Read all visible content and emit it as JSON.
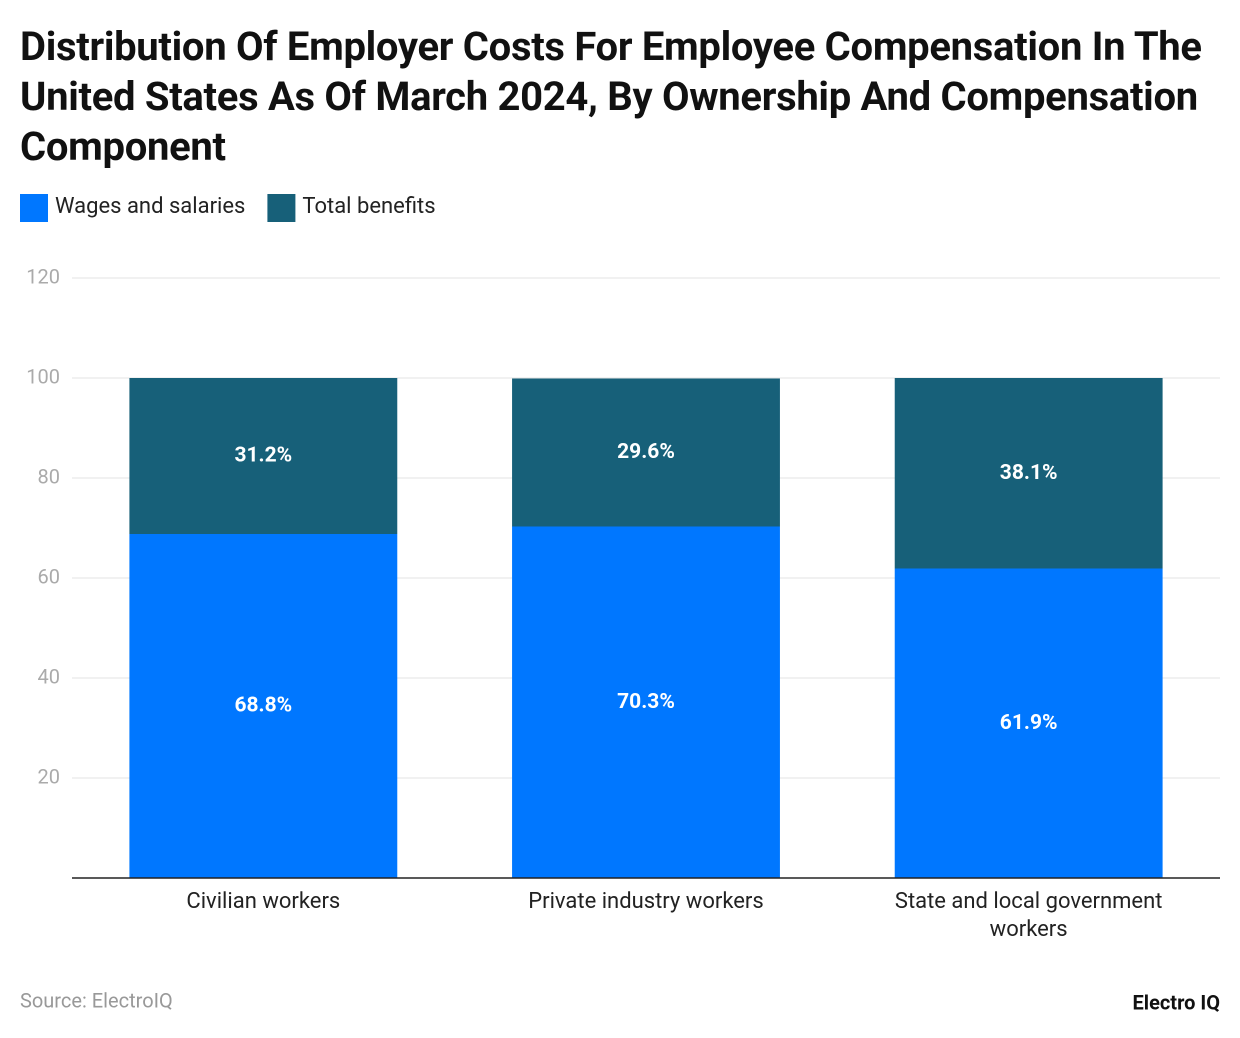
{
  "chart_data": {
    "type": "stacked_bar",
    "title": "Distribution Of Employer Costs For Employee Compensation In The United States As Of March 2024, By Ownership And Compensation Component",
    "categories": [
      "Civilian workers",
      "Private industry workers",
      "State and local government workers"
    ],
    "series": [
      {
        "name": "Wages and salaries",
        "color": "#0077ff",
        "values": [
          68.8,
          70.3,
          61.9
        ],
        "value_labels": [
          "68.8%",
          "70.3%",
          "61.9%"
        ]
      },
      {
        "name": "Total benefits",
        "color": "#176079",
        "values": [
          31.2,
          29.6,
          38.1
        ],
        "value_labels": [
          "31.2%",
          "29.6%",
          "38.1%"
        ]
      }
    ],
    "ylim": [
      0,
      120
    ],
    "yticks": [
      20,
      40,
      60,
      80,
      100,
      120
    ],
    "grid": true,
    "source": "Source: ElectroIQ",
    "brand": "Electro IQ"
  }
}
